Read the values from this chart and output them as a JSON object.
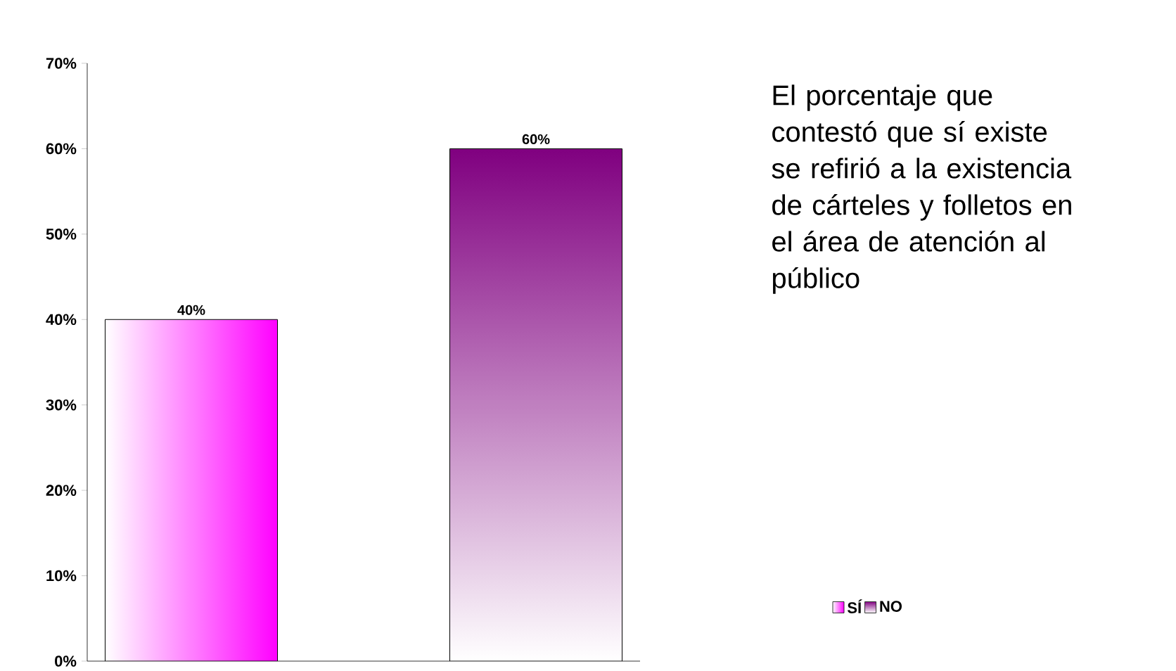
{
  "chart_data": {
    "type": "bar",
    "categories": [
      null,
      null
    ],
    "series": [
      {
        "name": "SÍ",
        "color": "#ff00ff",
        "values": [
          40,
          null
        ],
        "value_labels": [
          "40%",
          null
        ]
      },
      {
        "name": "NO",
        "color": "#800080",
        "values": [
          null,
          60
        ],
        "value_labels": [
          null,
          "60%"
        ]
      }
    ],
    "ylim": [
      0,
      70
    ],
    "yticks": [
      {
        "value": 0,
        "label": "0%"
      },
      {
        "value": 10,
        "label": "10%"
      },
      {
        "value": 20,
        "label": "20%"
      },
      {
        "value": 30,
        "label": "30%"
      },
      {
        "value": 40,
        "label": "40%"
      },
      {
        "value": 50,
        "label": "50%"
      },
      {
        "value": 60,
        "label": "60%"
      },
      {
        "value": 70,
        "label": "70%"
      }
    ],
    "annotations": [
      "El porcentaje que contestó que sí existe se refirió a la existencia de cárteles y folletos en el área de atención al público"
    ],
    "legend": "bottom right",
    "grid": false
  }
}
